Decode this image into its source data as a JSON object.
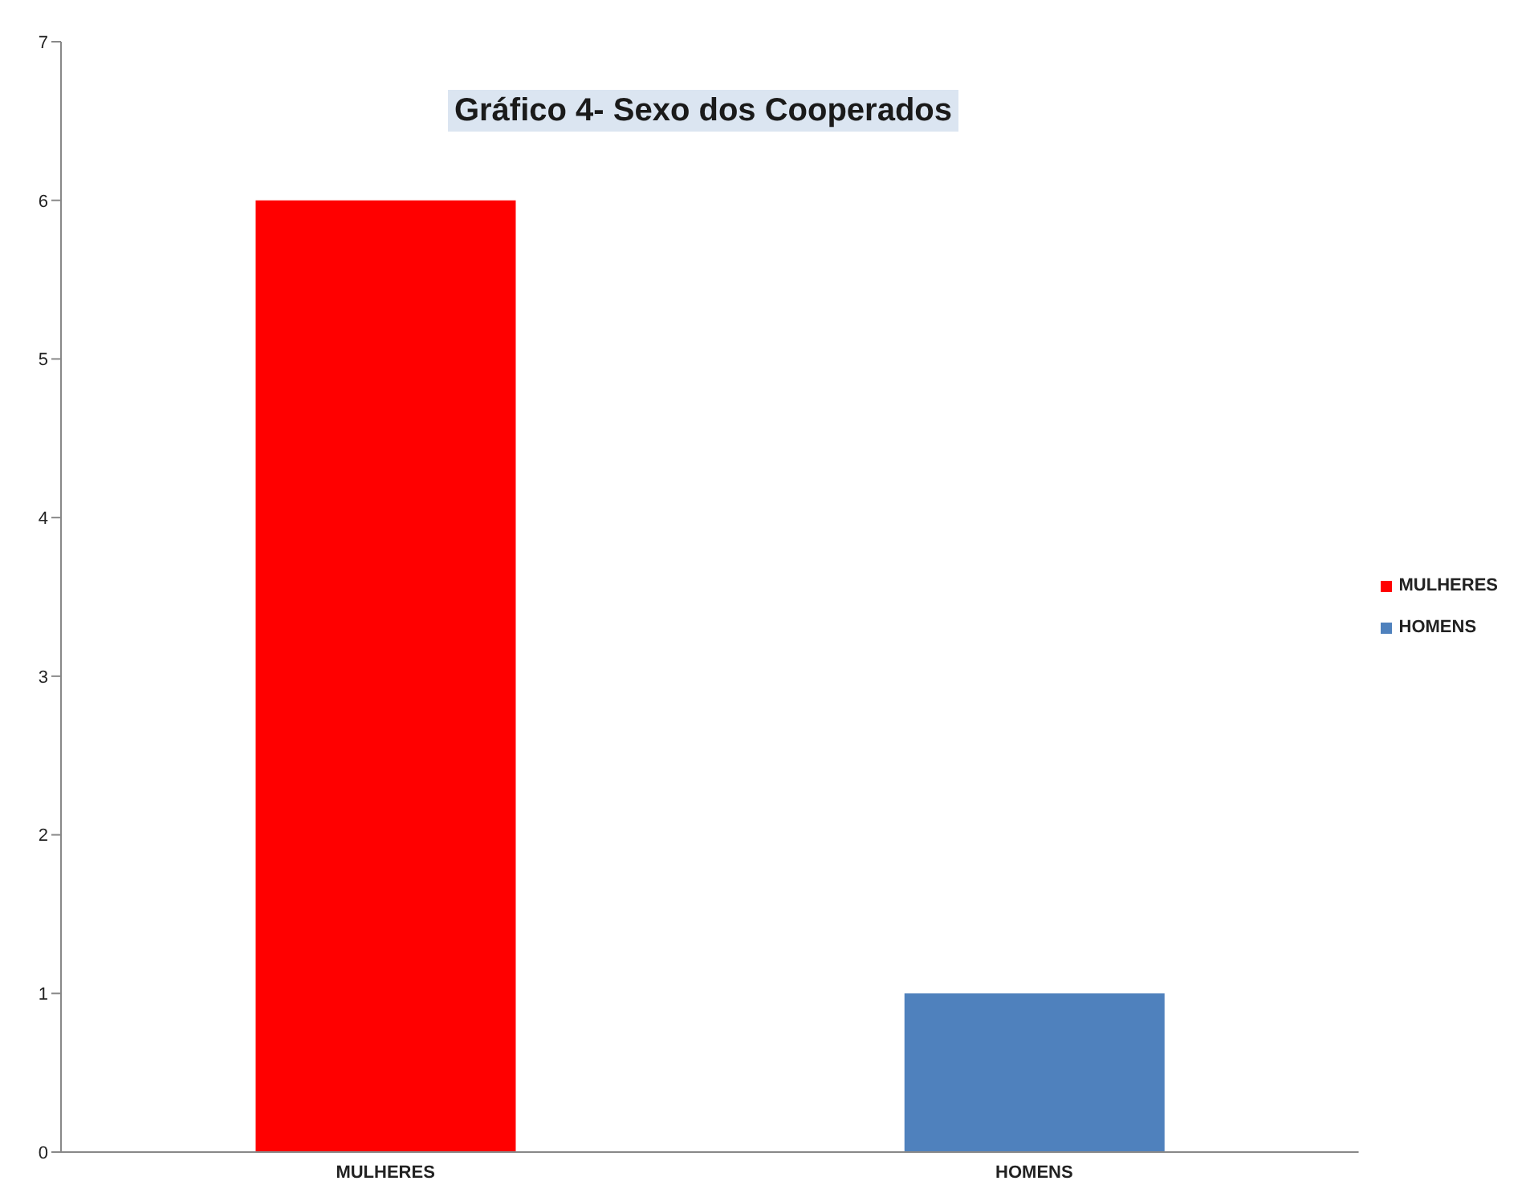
{
  "chart_data": {
    "type": "bar",
    "title": "Gráfico 4- Sexo dos Cooperados",
    "categories": [
      "MULHERES",
      "HOMENS"
    ],
    "series": [
      {
        "name": "MULHERES",
        "color": "#ff0000",
        "values": [
          6,
          null
        ]
      },
      {
        "name": "HOMENS",
        "color": "#4f81bd",
        "values": [
          null,
          1
        ]
      }
    ],
    "ylim": [
      0,
      7
    ],
    "yticks": [
      0,
      1,
      2,
      3,
      4,
      5,
      6,
      7
    ],
    "legend": "right"
  }
}
